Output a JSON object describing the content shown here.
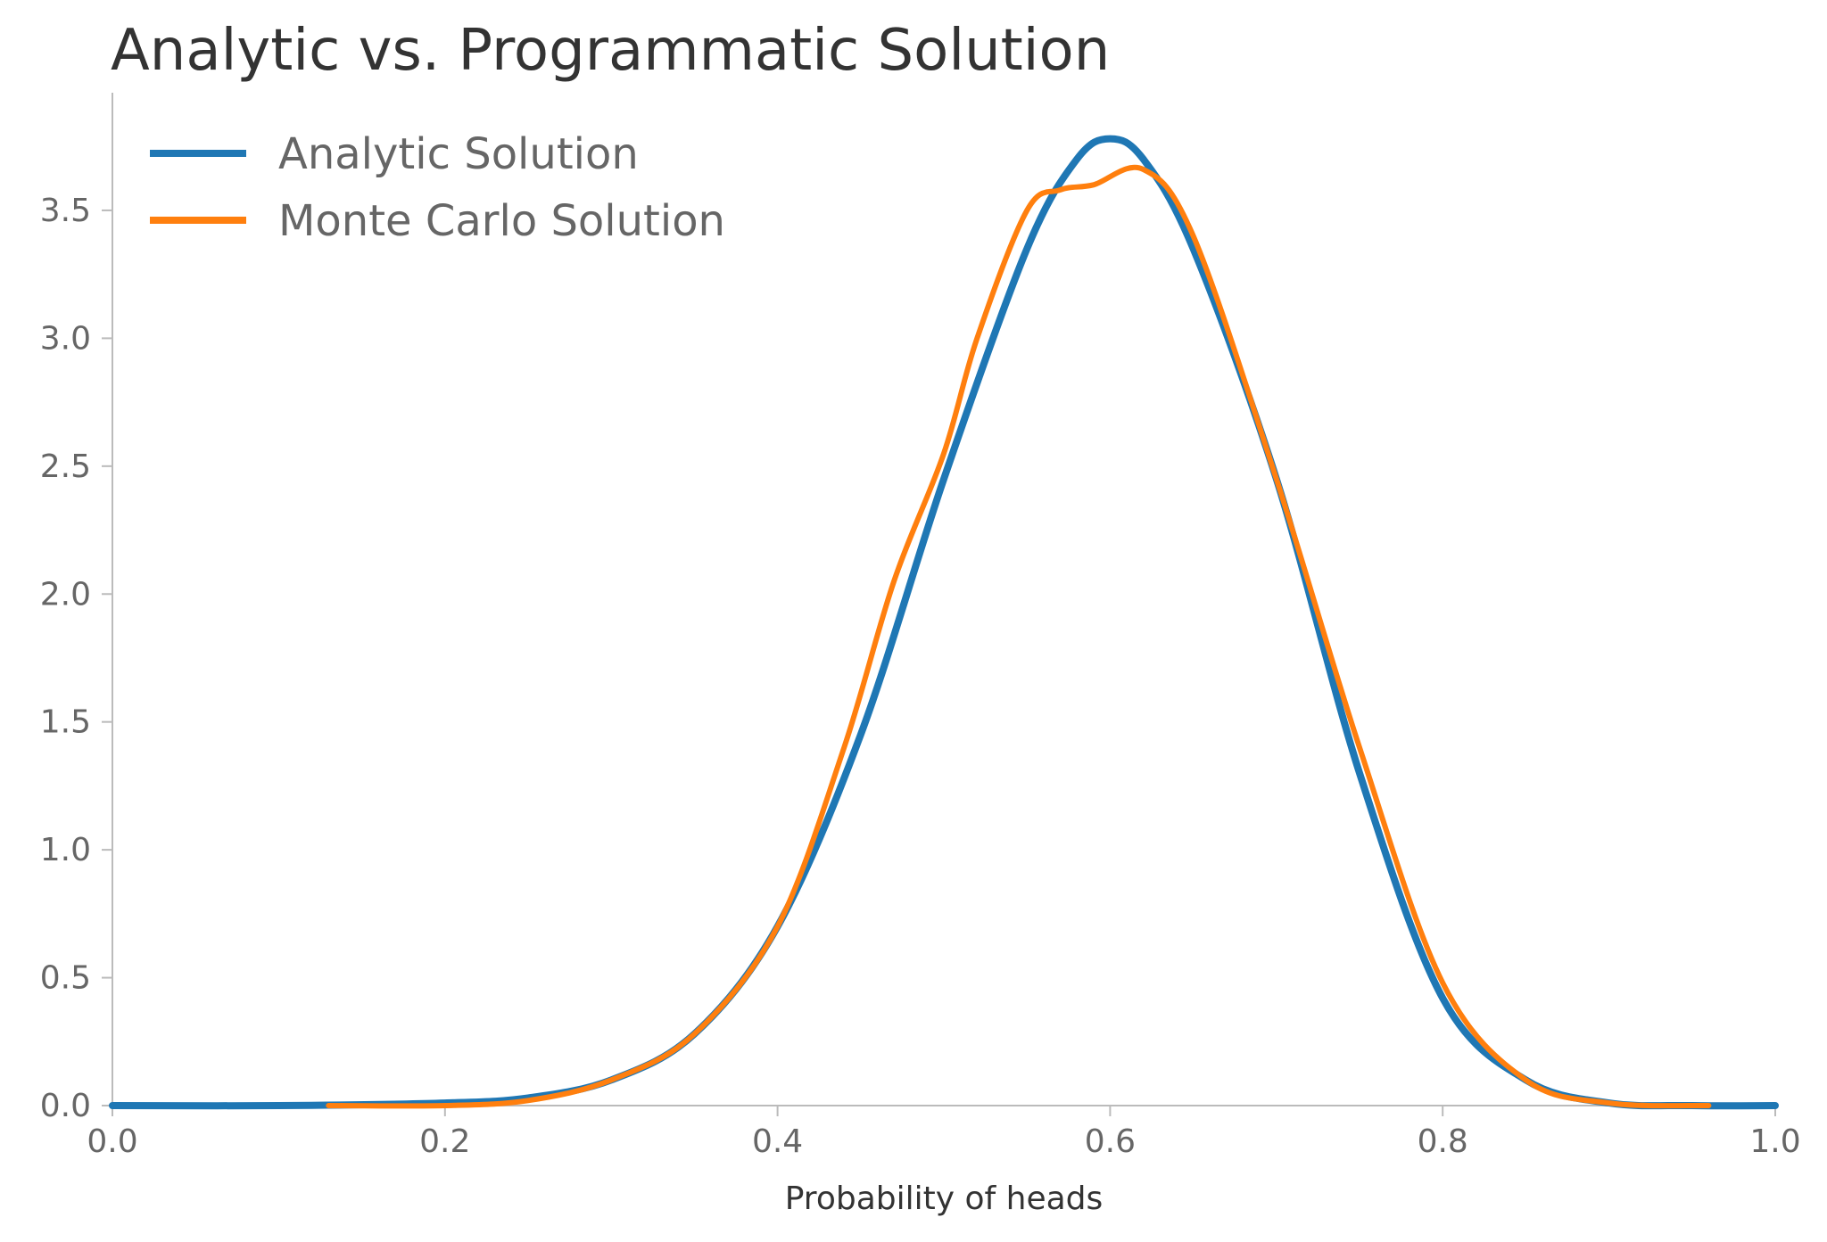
{
  "chart_data": {
    "type": "line",
    "title": "Analytic vs. Programmatic Solution",
    "xlabel": "Probability of heads",
    "ylabel": "",
    "xlim": [
      0.0,
      1.0
    ],
    "ylim": [
      0.0,
      3.96
    ],
    "xticks": [
      "0.0",
      "0.2",
      "0.4",
      "0.6",
      "0.8",
      "1.0"
    ],
    "yticks": [
      "0.0",
      "0.5",
      "1.0",
      "1.5",
      "2.0",
      "2.5",
      "3.0",
      "3.5"
    ],
    "grid": false,
    "legend_position": "top-left",
    "series": [
      {
        "name": "Analytic Solution",
        "color": "#1f77b4",
        "x": [
          0.0,
          0.1,
          0.2,
          0.25,
          0.3,
          0.35,
          0.4,
          0.45,
          0.5,
          0.55,
          0.58,
          0.6,
          0.62,
          0.65,
          0.7,
          0.75,
          0.8,
          0.85,
          0.9,
          0.95,
          1.0
        ],
        "y": [
          0.0,
          0.0,
          0.01,
          0.03,
          0.1,
          0.28,
          0.7,
          1.45,
          2.45,
          3.35,
          3.7,
          3.78,
          3.7,
          3.35,
          2.45,
          1.3,
          0.42,
          0.1,
          0.01,
          0.0,
          0.0
        ]
      },
      {
        "name": "Monte Carlo Solution",
        "color": "#ff7f0e",
        "x": [
          0.13,
          0.2,
          0.25,
          0.3,
          0.35,
          0.4,
          0.44,
          0.47,
          0.5,
          0.52,
          0.55,
          0.57,
          0.59,
          0.62,
          0.65,
          0.7,
          0.75,
          0.8,
          0.85,
          0.9,
          0.96
        ],
        "y": [
          0.0,
          0.0,
          0.02,
          0.1,
          0.28,
          0.7,
          1.4,
          2.05,
          2.55,
          3.0,
          3.5,
          3.58,
          3.6,
          3.66,
          3.4,
          2.45,
          1.4,
          0.48,
          0.1,
          0.01,
          0.0
        ]
      }
    ]
  }
}
